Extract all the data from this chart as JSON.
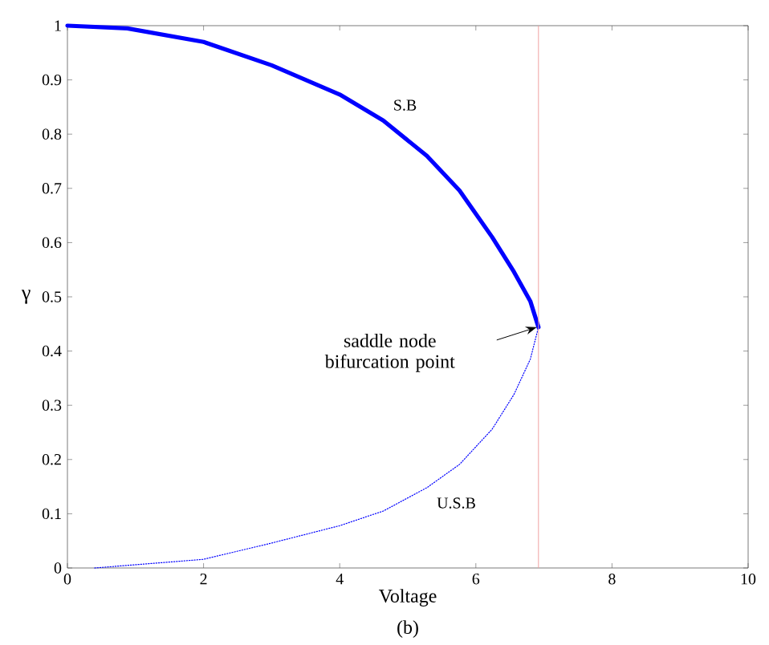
{
  "chart_data": {
    "type": "line",
    "xlabel": "Voltage",
    "ylabel": "γ",
    "xlim": [
      0,
      10
    ],
    "ylim": [
      0,
      1
    ],
    "xticks": [
      0,
      2,
      4,
      6,
      8,
      10
    ],
    "yticks": [
      0,
      0.1,
      0.2,
      0.3,
      0.4,
      0.5,
      0.6,
      0.7,
      0.8,
      0.9,
      1
    ],
    "series": [
      {
        "name": "S.B",
        "color": "#0000ff",
        "line_style": "solid",
        "x": [
          0,
          0.88,
          2,
          3,
          4,
          4.64,
          5.28,
          5.76,
          6.24,
          6.56,
          6.8,
          6.92
        ],
        "values": [
          1,
          0.995,
          0.97,
          0.927,
          0.873,
          0.825,
          0.76,
          0.696,
          0.61,
          0.546,
          0.492,
          0.444
        ]
      },
      {
        "name": "U.S.B",
        "color": "#0000ff",
        "line_style": "dotted",
        "x": [
          0.4,
          2,
          3,
          4,
          4.64,
          5.28,
          5.76,
          6.24,
          6.56,
          6.8,
          6.92
        ],
        "values": [
          0,
          0.016,
          0.046,
          0.078,
          0.105,
          0.148,
          0.191,
          0.256,
          0.32,
          0.385,
          0.444
        ]
      }
    ],
    "ref_lines": [
      {
        "axis": "x",
        "value": 6.92,
        "color": "#f0a0a0"
      }
    ],
    "annotations": [
      "saddle node bifurcation point",
      "(b)"
    ],
    "grid": false,
    "legend": false,
    "marker": "none"
  }
}
